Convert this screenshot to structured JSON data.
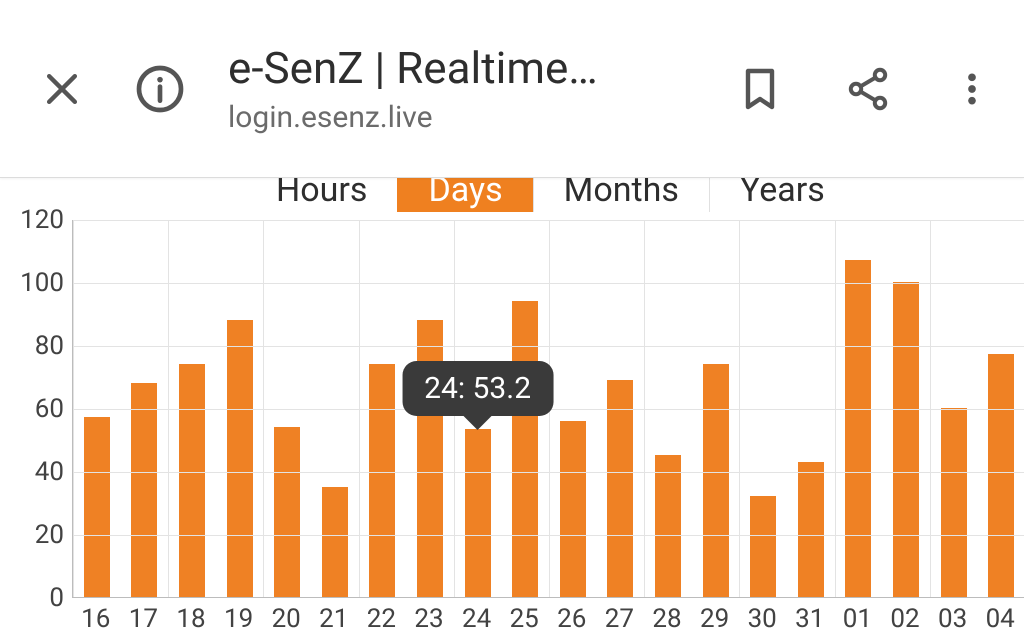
{
  "chrome": {
    "title": "e-SenZ | Realtime…",
    "subtitle": "login.esenz.live"
  },
  "tabs": {
    "items": [
      "Hours",
      "Days",
      "Months",
      "Years"
    ],
    "active_index": 1
  },
  "chart": {
    "type": "bar",
    "bar_color": "#ef8124",
    "grid_color": "#e3e3e3",
    "axis_color": "#bcbcbc",
    "text_color": "#424242",
    "label_fontsize": 26,
    "y_min": 0,
    "y_max": 120,
    "y_tick_step": 20,
    "categories": [
      "16",
      "17",
      "18",
      "19",
      "20",
      "21",
      "22",
      "23",
      "24",
      "25",
      "26",
      "27",
      "28",
      "29",
      "30",
      "31",
      "01",
      "02",
      "03",
      "04"
    ],
    "values": [
      57,
      68,
      74,
      88,
      54,
      35,
      74,
      88,
      53.2,
      94,
      56,
      69,
      45,
      74,
      32,
      43,
      107,
      100,
      60,
      77
    ],
    "bar_width_ratio": 0.55,
    "vgrid_every": 2,
    "tooltip": {
      "bar_index": 8,
      "text": "24: 53.2"
    }
  }
}
